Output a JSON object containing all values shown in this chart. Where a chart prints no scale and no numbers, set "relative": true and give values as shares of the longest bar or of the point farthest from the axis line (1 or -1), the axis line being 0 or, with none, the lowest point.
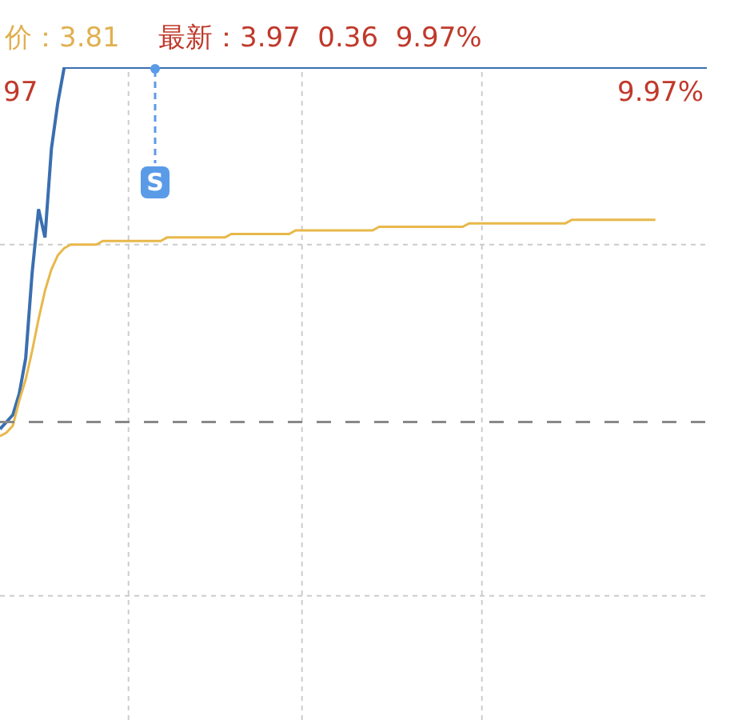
{
  "chart_data": {
    "type": "line",
    "relative": true,
    "grid": true,
    "marker": "none",
    "line_style": "solid",
    "annotations": [
      "价：3.81",
      "最新：3.97  0.36  9.97%",
      "97",
      "9.97%",
      "S"
    ],
    "ref_lines": [
      {
        "axis": "y",
        "value": 0,
        "color": "#888888",
        "line_style": "dashed"
      }
    ],
    "categories": [
      null,
      null,
      null,
      null,
      null,
      null,
      null,
      null,
      null,
      null,
      null,
      null,
      null,
      null,
      null,
      null,
      null,
      null,
      null,
      null,
      null,
      null,
      null,
      null,
      null,
      null,
      null,
      null,
      null,
      null,
      null,
      null,
      null,
      null,
      null,
      null,
      null,
      null,
      null,
      null,
      null,
      null,
      null,
      null,
      null,
      null,
      null,
      null,
      null,
      null,
      null,
      null,
      null,
      null,
      null,
      null,
      null,
      null,
      null,
      null,
      null,
      null,
      null,
      null,
      null,
      null,
      null,
      null,
      null,
      null,
      null,
      null,
      null,
      null,
      null,
      null,
      null,
      null,
      null,
      null,
      null,
      null,
      null,
      null,
      null,
      null,
      null,
      null,
      null,
      null,
      null,
      null,
      null,
      null,
      null,
      null,
      null,
      null,
      null,
      null,
      null,
      null,
      null,
      null,
      null,
      null,
      null,
      null,
      null,
      null,
      null
    ],
    "series": [
      {
        "color": "#3a6fb0",
        "values": [
          -0.02,
          0,
          0.02,
          0.08,
          0.18,
          0.42,
          0.6,
          0.52,
          0.77,
          0.9,
          1,
          1,
          1,
          1,
          1,
          1,
          1,
          1,
          1,
          1,
          1,
          1,
          1,
          1,
          1,
          1,
          1,
          1,
          1,
          1,
          1,
          1,
          1,
          1,
          1,
          1,
          1,
          1,
          1,
          1,
          1,
          1,
          1,
          1,
          1,
          1,
          1,
          1,
          1,
          1,
          1,
          1,
          1,
          1,
          1,
          1,
          1,
          1,
          1,
          1,
          1,
          1,
          1,
          1,
          1,
          1,
          1,
          1,
          1,
          1,
          1,
          1,
          1,
          1,
          1,
          1,
          1,
          1,
          1,
          1,
          1,
          1,
          1,
          1,
          1,
          1,
          1,
          1,
          1,
          1,
          1,
          1,
          1,
          1,
          1,
          1,
          1,
          1,
          1,
          1,
          1,
          1,
          1,
          1,
          1,
          1,
          1,
          1,
          1,
          1,
          1
        ]
      },
      {
        "color": "#e8b84a",
        "values": [
          -0.04,
          -0.03,
          -0.01,
          0.06,
          0.12,
          0.2,
          0.29,
          0.37,
          0.43,
          0.47,
          0.49,
          0.5,
          0.5,
          0.5,
          0.5,
          0.5,
          0.51,
          0.51,
          0.51,
          0.51,
          0.51,
          0.51,
          0.51,
          0.51,
          0.51,
          0.51,
          0.52,
          0.52,
          0.52,
          0.52,
          0.52,
          0.52,
          0.52,
          0.52,
          0.52,
          0.52,
          0.53,
          0.53,
          0.53,
          0.53,
          0.53,
          0.53,
          0.53,
          0.53,
          0.53,
          0.53,
          0.54,
          0.54,
          0.54,
          0.54,
          0.54,
          0.54,
          0.54,
          0.54,
          0.54,
          0.54,
          0.54,
          0.54,
          0.54,
          0.55,
          0.55,
          0.55,
          0.55,
          0.55,
          0.55,
          0.55,
          0.55,
          0.55,
          0.55,
          0.55,
          0.55,
          0.55,
          0.55,
          0.56,
          0.56,
          0.56,
          0.56,
          0.56,
          0.56,
          0.56,
          0.56,
          0.56,
          0.56,
          0.56,
          0.56,
          0.56,
          0.56,
          0.56,
          0.56,
          0.57,
          0.57,
          0.57,
          0.57,
          0.57,
          0.57,
          0.57,
          0.57,
          0.57,
          0.57,
          0.57,
          0.57,
          0.57,
          0.57,
          null,
          null,
          null,
          null,
          null,
          null,
          null,
          null
        ]
      }
    ]
  }
}
